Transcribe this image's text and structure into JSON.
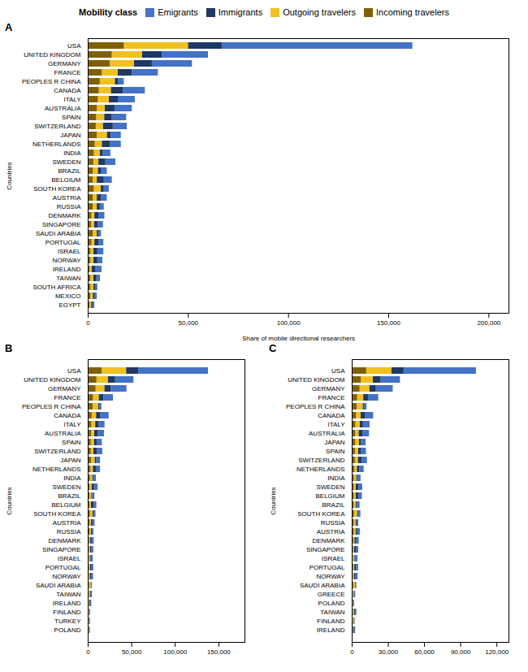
{
  "chart_data": [
    {
      "type": "bar",
      "orientation": "horizontal",
      "stacked": true,
      "title": "A",
      "legend": "top",
      "legend_title": "Mobility class",
      "xlabel": "Share of mobile directional researchers",
      "ylabel": "Countries",
      "categories": [
        "USA",
        "UNITED KINGDOM",
        "GERMANY",
        "FRANCE",
        "PEOPLES R CHINA",
        "CANADA",
        "ITALY",
        "AUSTRALIA",
        "SPAIN",
        "SWITZERLAND",
        "JAPAN",
        "NETHERLANDS",
        "INDIA",
        "SWEDEN",
        "BRAZIL",
        "BELGIUM",
        "SOUTH KOREA",
        "AUSTRIA",
        "RUSSIA",
        "DENMARK",
        "SINGAPORE",
        "SAUDI ARABIA",
        "PORTUGAL",
        "ISRAEL",
        "NORWAY",
        "IRELAND",
        "TAIWAN",
        "SOUTH AFRICA",
        "MEXICO",
        "EGYPT"
      ],
      "series": [
        {
          "name": "Emigrants",
          "color": "#4472c4",
          "values": [
            95000,
            23000,
            20000,
            13000,
            3000,
            11000,
            8500,
            8500,
            7200,
            7000,
            5000,
            5500,
            3800,
            5000,
            3000,
            4000,
            2500,
            3000,
            2000,
            3000,
            2500,
            1300,
            2500,
            3000,
            2500,
            3000,
            1800,
            1200,
            1200,
            900
          ]
        },
        {
          "name": "Immigrants",
          "color": "#1f3864",
          "values": [
            17000,
            10000,
            9000,
            7000,
            1500,
            6000,
            4500,
            5000,
            3800,
            5000,
            2000,
            4000,
            1500,
            3500,
            1500,
            3500,
            1500,
            2000,
            1500,
            2000,
            2000,
            800,
            2000,
            2000,
            2000,
            2000,
            1500,
            800,
            800,
            700
          ]
        },
        {
          "name": "Outgoing travelers",
          "color": "#f0c020",
          "values": [
            32000,
            15000,
            12000,
            8000,
            7500,
            6000,
            5500,
            4000,
            4000,
            3500,
            5000,
            3500,
            3000,
            2500,
            2500,
            2000,
            3500,
            2000,
            2000,
            1500,
            1500,
            2000,
            1500,
            1500,
            1500,
            1000,
            1500,
            1500,
            1200,
            800
          ]
        },
        {
          "name": "Incoming travelers",
          "color": "#7f6000",
          "values": [
            18000,
            12000,
            11000,
            7000,
            6000,
            5500,
            5000,
            4500,
            4200,
            4000,
            4500,
            3500,
            3000,
            2800,
            2500,
            2500,
            3000,
            2500,
            2500,
            1800,
            1600,
            2500,
            1800,
            1300,
            1300,
            900,
            1300,
            1300,
            1300,
            900
          ]
        }
      ],
      "xlim": [
        0,
        210000
      ],
      "xticks": [
        0,
        {
          "value": 50000,
          "label": "50,000"
        },
        {
          "value": 100000,
          "label": "100,000"
        },
        {
          "value": 150000,
          "label": "150,000"
        },
        {
          "value": 200000,
          "label": "200,000"
        }
      ]
    },
    {
      "type": "bar",
      "orientation": "horizontal",
      "stacked": true,
      "title": "B",
      "ylabel": "Countries",
      "categories": [
        "USA",
        "UNITED KINGDOM",
        "GERMANY",
        "FRANCE",
        "PEOPLES R CHINA",
        "CANADA",
        "ITALY",
        "AUSTRALIA",
        "SPAIN",
        "SWITZERLAND",
        "JAPAN",
        "NETHERLANDS",
        "INDIA",
        "SWEDEN",
        "BRAZIL",
        "BELGIUM",
        "SOUTH KOREA",
        "AUSTRIA",
        "RUSSIA",
        "DENMARK",
        "SINGAPORE",
        "ISRAEL",
        "PORTUGAL",
        "NORWAY",
        "SAUDI ARABIA",
        "TAIWAN",
        "IRELAND",
        "FINLAND",
        "TURKEY",
        "POLAND"
      ],
      "series": [
        {
          "name": "Emigrants",
          "color": "#4472c4",
          "values": [
            80000,
            21000,
            18000,
            11000,
            2500,
            9500,
            7000,
            7200,
            6000,
            6000,
            4500,
            4800,
            3200,
            4200,
            2500,
            3200,
            2200,
            2500,
            1700,
            2500,
            2200,
            3000,
            2000,
            2200,
            1000,
            1500,
            1300,
            900,
            900,
            900
          ]
        },
        {
          "name": "Immigrants",
          "color": "#1f3864",
          "values": [
            14000,
            8500,
            7500,
            5500,
            1200,
            5000,
            3800,
            4200,
            3200,
            4200,
            1800,
            3500,
            1200,
            3000,
            1200,
            3000,
            1200,
            1700,
            1200,
            1700,
            1700,
            600,
            1700,
            1700,
            500,
            1200,
            1200,
            400,
            400,
            400
          ]
        },
        {
          "name": "Outgoing travelers",
          "color": "#f0c020",
          "values": [
            28000,
            13000,
            10000,
            6500,
            6500,
            5000,
            4500,
            3500,
            3500,
            3000,
            4000,
            2800,
            2500,
            2000,
            2000,
            1700,
            3000,
            1700,
            1700,
            1200,
            1200,
            1200,
            1200,
            1200,
            1800,
            1200,
            800,
            800,
            800,
            600
          ]
        },
        {
          "name": "Incoming travelers",
          "color": "#7f6000",
          "values": [
            16000,
            10000,
            9000,
            6000,
            5500,
            4500,
            4000,
            3800,
            3500,
            3500,
            3800,
            3000,
            2500,
            2200,
            2000,
            2000,
            2500,
            2000,
            2000,
            1500,
            1300,
            1000,
            1500,
            1000,
            1500,
            1000,
            700,
            700,
            600,
            600
          ]
        }
      ],
      "xlim": [
        0,
        180000
      ],
      "xticks": [
        0,
        {
          "value": 50000,
          "label": "50,000"
        },
        {
          "value": 100000,
          "label": "100,000"
        },
        {
          "value": 150000,
          "label": "150,000"
        }
      ]
    },
    {
      "type": "bar",
      "orientation": "horizontal",
      "stacked": true,
      "title": "C",
      "ylabel": "Countries",
      "categories": [
        "USA",
        "UNITED KINGDOM",
        "GERMANY",
        "FRANCE",
        "PEOPLES R CHINA",
        "CANADA",
        "ITALY",
        "AUSTRALIA",
        "JAPAN",
        "SPAIN",
        "SWITZERLAND",
        "NETHERLANDS",
        "INDIA",
        "SWEDEN",
        "BELGIUM",
        "BRAZIL",
        "SOUTH KOREA",
        "RUSSIA",
        "AUSTRIA",
        "DENMARK",
        "SINGAPORE",
        "ISRAEL",
        "PORTUGAL",
        "NORWAY",
        "SAUDI ARABIA",
        "GREECE",
        "POLAND",
        "TAIWAN",
        "FINLAND",
        "IRELAND"
      ],
      "series": [
        {
          "name": "Emigrants",
          "color": "#4472c4",
          "values": [
            60000,
            16000,
            14000,
            8500,
            2200,
            7000,
            5500,
            5500,
            4000,
            4400,
            4400,
            3500,
            2800,
            3200,
            2800,
            2200,
            2000,
            1500,
            2200,
            2200,
            2000,
            2500,
            1800,
            1800,
            800,
            1200,
            800,
            1200,
            800,
            1000
          ]
        },
        {
          "name": "Immigrants",
          "color": "#1f3864",
          "values": [
            10000,
            6500,
            5500,
            4000,
            1000,
            3500,
            2800,
            3200,
            1500,
            2200,
            3200,
            2200,
            900,
            2200,
            2500,
            900,
            900,
            900,
            1400,
            1400,
            1400,
            500,
            1400,
            1400,
            400,
            500,
            350,
            900,
            350,
            900
          ]
        },
        {
          "name": "Outgoing travelers",
          "color": "#f0c020",
          "values": [
            21000,
            10000,
            8000,
            5000,
            5000,
            3800,
            3500,
            2800,
            3200,
            2600,
            2400,
            2000,
            1800,
            1600,
            1400,
            1700,
            2400,
            1400,
            1400,
            1000,
            900,
            900,
            900,
            800,
            1400,
            500,
            400,
            800,
            600,
            400
          ]
        },
        {
          "name": "Incoming travelers",
          "color": "#7f6000",
          "values": [
            12000,
            7500,
            6500,
            4500,
            4000,
            3500,
            3000,
            2800,
            2800,
            2600,
            2600,
            2200,
            1800,
            1700,
            1700,
            1700,
            1900,
            1700,
            1700,
            1200,
            1100,
            800,
            1200,
            900,
            1200,
            600,
            500,
            900,
            600,
            500
          ]
        }
      ],
      "xlim": [
        0,
        130000
      ],
      "xticks": [
        0,
        {
          "value": 30000,
          "label": "30,000"
        },
        {
          "value": 60000,
          "label": "60,000"
        },
        {
          "value": 90000,
          "label": "90,000"
        },
        {
          "value": 120000,
          "label": "120,000"
        }
      ]
    }
  ]
}
